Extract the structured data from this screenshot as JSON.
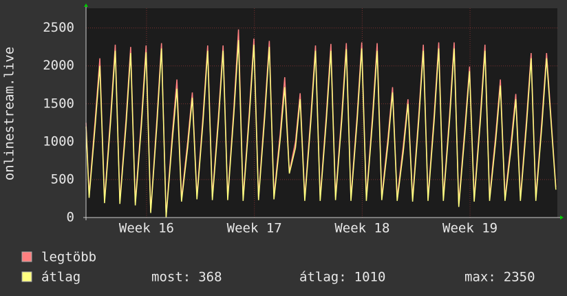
{
  "chart_data": {
    "type": "line",
    "y_label": "onlinestream.live",
    "xlim": [
      0,
      30.6
    ],
    "xticks": [
      {
        "value": 3.93,
        "label": "Week 16"
      },
      {
        "value": 10.93,
        "label": "Week 17"
      },
      {
        "value": 17.93,
        "label": "Week 18"
      },
      {
        "value": 24.93,
        "label": "Week 19"
      }
    ],
    "ylim": [
      0,
      2760
    ],
    "yticks": [
      0,
      500,
      1000,
      1500,
      2000,
      2500
    ],
    "grid": true,
    "x": [
      0,
      0.2,
      0.6,
      0.9,
      1.2,
      1.6,
      1.9,
      2.2,
      2.6,
      2.9,
      3.2,
      3.6,
      3.9,
      4.2,
      4.6,
      4.9,
      5.2,
      5.6,
      5.9,
      6.2,
      6.6,
      6.9,
      7.2,
      7.6,
      7.9,
      8.2,
      8.6,
      8.9,
      9.2,
      9.6,
      9.9,
      10.2,
      10.6,
      10.9,
      11.2,
      11.6,
      11.9,
      12.2,
      12.6,
      12.9,
      13.2,
      13.6,
      13.9,
      14.2,
      14.6,
      14.9,
      15.2,
      15.6,
      15.9,
      16.2,
      16.6,
      16.9,
      17.2,
      17.6,
      17.9,
      18.2,
      18.6,
      18.9,
      19.2,
      19.6,
      19.9,
      20.2,
      20.6,
      20.9,
      21.2,
      21.6,
      21.9,
      22.2,
      22.6,
      22.9,
      23.2,
      23.6,
      23.9,
      24.2,
      24.6,
      24.9,
      25.2,
      25.6,
      25.9,
      26.2,
      26.6,
      26.9,
      27.2,
      27.6,
      27.9,
      28.2,
      28.6,
      28.9,
      29.2,
      29.6,
      29.9,
      30.5
    ],
    "series": [
      {
        "name": "legtöbb",
        "color": "#ff8080",
        "values": [
          1250,
          300,
          1300,
          2100,
          230,
          1350,
          2280,
          220,
          1300,
          2250,
          200,
          1300,
          2270,
          80,
          1300,
          2300,
          20,
          1100,
          1820,
          250,
          1000,
          1650,
          280,
          1350,
          2270,
          270,
          1350,
          2270,
          270,
          1450,
          2480,
          260,
          1400,
          2360,
          270,
          1400,
          2330,
          280,
          1100,
          1850,
          600,
          1000,
          1640,
          260,
          1350,
          2270,
          260,
          1350,
          2290,
          270,
          1350,
          2300,
          260,
          1350,
          2310,
          260,
          1350,
          2300,
          270,
          1050,
          1720,
          260,
          950,
          1560,
          250,
          1350,
          2280,
          260,
          1350,
          2310,
          260,
          1350,
          2310,
          180,
          1200,
          1990,
          250,
          1350,
          2280,
          260,
          1100,
          1820,
          260,
          1000,
          1630,
          260,
          1300,
          2170,
          260,
          1300,
          2170,
          400
        ]
      },
      {
        "name": "átlag",
        "color": "#ffff80",
        "values": [
          1200,
          260,
          1220,
          2000,
          190,
          1270,
          2200,
          180,
          1220,
          2170,
          160,
          1220,
          2180,
          60,
          1220,
          2230,
          0,
          1020,
          1700,
          210,
          920,
          1580,
          240,
          1270,
          2200,
          230,
          1270,
          2200,
          230,
          1370,
          2340,
          220,
          1320,
          2280,
          230,
          1320,
          2250,
          240,
          1020,
          1720,
          580,
          920,
          1560,
          220,
          1270,
          2200,
          220,
          1270,
          2200,
          230,
          1270,
          2220,
          220,
          1270,
          2230,
          220,
          1270,
          2200,
          230,
          970,
          1650,
          220,
          870,
          1500,
          210,
          1270,
          2200,
          220,
          1270,
          2230,
          220,
          1270,
          2230,
          140,
          1120,
          1930,
          210,
          1270,
          2200,
          220,
          1020,
          1740,
          220,
          920,
          1560,
          220,
          1220,
          2100,
          220,
          1220,
          2100,
          368
        ]
      }
    ],
    "stats": [
      {
        "label": "most:",
        "value": 368
      },
      {
        "label": "átlag:",
        "value": 1010
      },
      {
        "label": "max:",
        "value": 2350
      }
    ]
  }
}
